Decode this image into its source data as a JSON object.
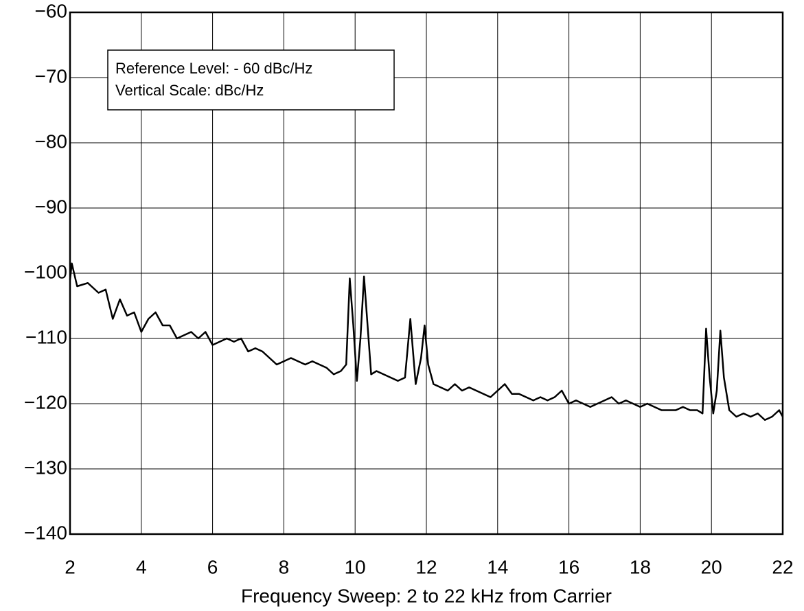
{
  "chart_data": {
    "type": "line",
    "xlabel": "Frequency Sweep: 2 to 22 kHz from Carrier",
    "annotations": [
      "Reference Level: - 60 dBc/Hz",
      "Vertical Scale: dBc/Hz"
    ],
    "xlim": [
      2,
      22
    ],
    "xticks": [
      2,
      4,
      6,
      8,
      10,
      12,
      14,
      16,
      18,
      20,
      22
    ],
    "ylim": [
      -140,
      -60
    ],
    "yticks": [
      {
        "value": -60,
        "label": "−60"
      },
      {
        "value": -70,
        "label": "−70"
      },
      {
        "value": -80,
        "label": "−80"
      },
      {
        "value": -90,
        "label": "−90"
      },
      {
        "value": -100,
        "label": "−100"
      },
      {
        "value": -110,
        "label": "−110"
      },
      {
        "value": -120,
        "label": "−120"
      },
      {
        "value": -130,
        "label": "−130"
      },
      {
        "value": -140,
        "label": "−140"
      }
    ],
    "grid": true,
    "series": [
      {
        "color": "#000000",
        "x": [
          2.0,
          2.05,
          2.2,
          2.5,
          2.8,
          3.0,
          3.2,
          3.4,
          3.6,
          3.8,
          4.0,
          4.2,
          4.4,
          4.6,
          4.8,
          5.0,
          5.2,
          5.4,
          5.6,
          5.8,
          6.0,
          6.2,
          6.4,
          6.6,
          6.8,
          7.0,
          7.2,
          7.4,
          7.6,
          7.8,
          8.0,
          8.2,
          8.4,
          8.6,
          8.8,
          9.0,
          9.2,
          9.4,
          9.6,
          9.75,
          9.85,
          9.95,
          10.05,
          10.15,
          10.25,
          10.35,
          10.45,
          10.6,
          10.8,
          11.0,
          11.2,
          11.4,
          11.55,
          11.7,
          11.85,
          11.95,
          12.05,
          12.2,
          12.4,
          12.6,
          12.8,
          13.0,
          13.2,
          13.4,
          13.6,
          13.8,
          14.0,
          14.2,
          14.4,
          14.6,
          14.8,
          15.0,
          15.2,
          15.4,
          15.6,
          15.8,
          16.0,
          16.2,
          16.4,
          16.6,
          16.8,
          17.0,
          17.2,
          17.4,
          17.6,
          17.8,
          18.0,
          18.2,
          18.4,
          18.6,
          18.8,
          19.0,
          19.2,
          19.4,
          19.6,
          19.75,
          19.85,
          19.95,
          20.05,
          20.15,
          20.25,
          20.35,
          20.5,
          20.7,
          20.9,
          21.1,
          21.3,
          21.5,
          21.7,
          21.9,
          22.0
        ],
        "values": [
          -101,
          -98.5,
          -102,
          -101.5,
          -103,
          -102.5,
          -107,
          -104,
          -106.5,
          -106,
          -109,
          -107,
          -106,
          -108,
          -108,
          -110,
          -109.5,
          -109,
          -110,
          -109,
          -111,
          -110.5,
          -110,
          -110.5,
          -110,
          -112,
          -111.5,
          -112,
          -113,
          -114,
          -113.5,
          -113,
          -113.5,
          -114,
          -113.5,
          -114,
          -114.5,
          -115.5,
          -115,
          -114,
          -100.8,
          -108,
          -116.5,
          -110,
          -100.5,
          -108,
          -115.5,
          -115,
          -115.5,
          -116,
          -116.5,
          -116,
          -107,
          -117,
          -113,
          -108,
          -114,
          -117,
          -117.5,
          -118,
          -117,
          -118,
          -117.5,
          -118,
          -118.5,
          -119,
          -118,
          -117,
          -118.5,
          -118.5,
          -119,
          -119.5,
          -119,
          -119.5,
          -119,
          -118,
          -120,
          -119.5,
          -120,
          -120.5,
          -120,
          -119.5,
          -119,
          -120,
          -119.5,
          -120,
          -120.5,
          -120,
          -120.5,
          -121,
          -121,
          -121,
          -120.5,
          -121,
          -121,
          -121.5,
          -108.5,
          -116,
          -121.5,
          -118,
          -108.8,
          -116,
          -121,
          -122,
          -121.5,
          -122,
          -121.5,
          -122.5,
          -122,
          -121,
          -122
        ]
      }
    ]
  }
}
